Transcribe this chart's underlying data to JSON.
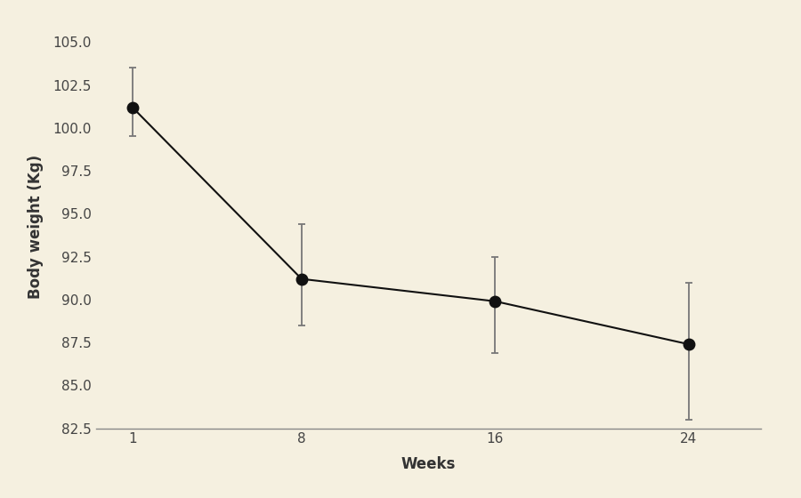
{
  "x": [
    1,
    8,
    16,
    24
  ],
  "y": [
    101.2,
    91.2,
    89.9,
    87.4
  ],
  "yerr_low": [
    1.7,
    2.7,
    3.0,
    4.4
  ],
  "yerr_high": [
    2.3,
    3.2,
    2.6,
    3.6
  ],
  "xlabel": "Weeks",
  "ylabel": "Body weight (Kg)",
  "xlim": [
    -0.5,
    27
  ],
  "ylim": [
    82.5,
    106
  ],
  "xticks": [
    1,
    8,
    16,
    24
  ],
  "yticks": [
    82.5,
    85,
    87.5,
    90,
    92.5,
    95,
    97.5,
    100,
    102.5,
    105
  ],
  "background_color": "#f5f0e0",
  "marker_color": "#111111",
  "error_color": "#777777",
  "line_color": "#555555",
  "marker_size": 9,
  "line_width": 1.5,
  "capsize": 3,
  "label_fontsize": 12,
  "tick_fontsize": 11
}
